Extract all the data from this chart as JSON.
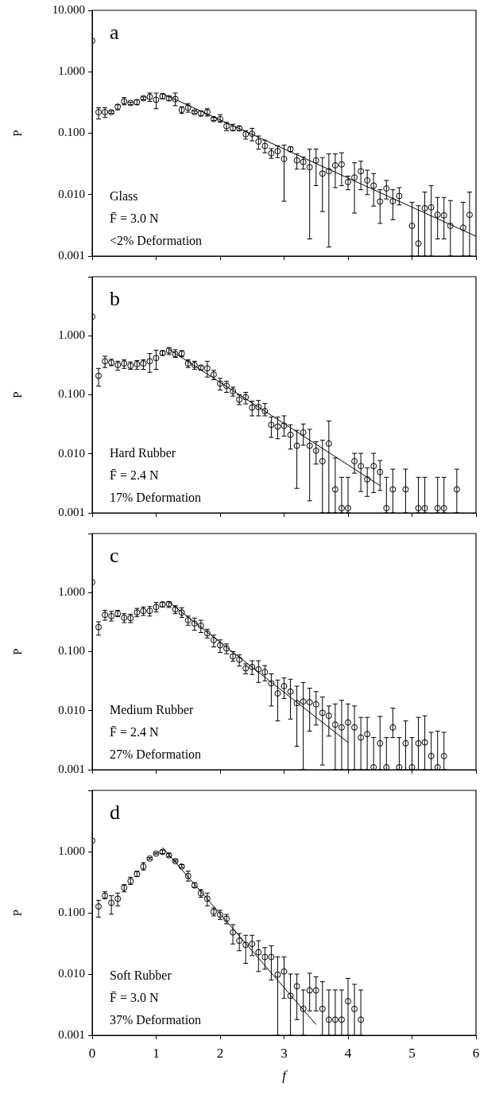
{
  "chart_data": [
    {
      "type": "scatter",
      "title": "a",
      "ylabel": "P",
      "annotations": [
        "Glass",
        "F̄ = 3.0 N",
        "<2% Deformation"
      ],
      "marker": "circle",
      "grid": false,
      "log": "y",
      "tick_labels": "y",
      "xlim": [
        0,
        6
      ],
      "xticks": [
        0,
        1,
        2,
        3,
        4,
        5,
        6
      ],
      "ylim": [
        0.001,
        10
      ],
      "yticks": [
        {
          "value": 0.001,
          "label": "0.001"
        },
        {
          "value": 0.01,
          "label": "0.010"
        },
        {
          "value": 0.1,
          "label": "0.100"
        },
        {
          "value": 1,
          "label": "1.000"
        },
        {
          "value": 10,
          "label": "10.000"
        }
      ],
      "series": [
        {
          "type": "scatter",
          "color": "#000000",
          "x": [
            0,
            0.1,
            0.2,
            0.3,
            0.4,
            0.5,
            0.6,
            0.7,
            0.8,
            0.9,
            1.0,
            1.1,
            1.2,
            1.3,
            1.4,
            1.5,
            1.6,
            1.7,
            1.8,
            1.9,
            2.0,
            2.1,
            2.2,
            2.3,
            2.4,
            2.5,
            2.6,
            2.7,
            2.8,
            2.9,
            3.0,
            3.1,
            3.2,
            3.3,
            3.4,
            3.5,
            3.6,
            3.7,
            3.8,
            3.9,
            4.0,
            4.1,
            4.2,
            4.3,
            4.4,
            4.5,
            4.6,
            4.7,
            4.8,
            5.0,
            5.1,
            5.2,
            5.3,
            5.4,
            5.5,
            5.6,
            5.8,
            5.9
          ],
          "values": [
            3.2,
            0.22,
            0.22,
            0.22,
            0.27,
            0.33,
            0.31,
            0.32,
            0.37,
            0.39,
            0.35,
            0.4,
            0.37,
            0.36,
            0.24,
            0.26,
            0.22,
            0.21,
            0.22,
            0.17,
            0.17,
            0.13,
            0.12,
            0.12,
            0.096,
            0.098,
            0.073,
            0.062,
            0.047,
            0.051,
            0.038,
            0.055,
            0.036,
            0.034,
            0.028,
            0.036,
            0.022,
            0.024,
            0.03,
            0.031,
            0.016,
            0.019,
            0.024,
            0.017,
            0.014,
            0.0077,
            0.0126,
            0.0078,
            0.0095,
            0.0031,
            0.0016,
            0.006,
            0.0062,
            0.0047,
            0.0046,
            0.0031,
            0.0029,
            0.0047
          ],
          "errors": [
            null,
            [
              0.17,
              0.26
            ],
            [
              0.18,
              0.26
            ],
            [
              0.21,
              0.23
            ],
            [
              0.24,
              0.29
            ],
            [
              0.29,
              0.38
            ],
            [
              0.29,
              0.32
            ],
            [
              0.29,
              0.35
            ],
            [
              0.35,
              0.39
            ],
            [
              0.33,
              0.45
            ],
            [
              0.25,
              0.45
            ],
            [
              0.36,
              0.44
            ],
            [
              0.34,
              0.4
            ],
            [
              0.28,
              0.45
            ],
            [
              0.21,
              0.27
            ],
            [
              0.22,
              0.3
            ],
            [
              0.21,
              0.23
            ],
            [
              0.19,
              0.23
            ],
            [
              0.19,
              0.25
            ],
            [
              0.16,
              0.18
            ],
            [
              0.15,
              0.2
            ],
            [
              0.11,
              0.15
            ],
            [
              0.11,
              0.14
            ],
            [
              0.11,
              0.13
            ],
            [
              0.08,
              0.11
            ],
            [
              0.075,
              0.12
            ],
            [
              0.055,
              0.09
            ],
            [
              0.048,
              0.077
            ],
            [
              0.039,
              0.056
            ],
            [
              0.04,
              0.062
            ],
            [
              0.0078,
              0.064
            ],
            [
              0.05,
              0.06
            ],
            [
              0.026,
              0.046
            ],
            [
              0.026,
              0.041
            ],
            [
              0.0019,
              0.055
            ],
            [
              0.014,
              0.055
            ],
            [
              0.0053,
              0.04
            ],
            [
              0.0014,
              0.046
            ],
            [
              0.013,
              0.046
            ],
            [
              0.014,
              0.048
            ],
            [
              0.012,
              0.02
            ],
            [
              0.005,
              0.033
            ],
            [
              0.012,
              0.035
            ],
            [
              0.01,
              0.025
            ],
            [
              0.0065,
              0.022
            ],
            [
              0.0034,
              0.012
            ],
            [
              0.0085,
              0.017
            ],
            [
              0.0039,
              0.012
            ],
            [
              0.0068,
              0.013
            ],
            [
              0.001,
              0.0075
            ],
            [
              0.001,
              0.0066
            ],
            [
              0.001,
              0.011
            ],
            [
              0.001,
              0.014
            ],
            [
              0.0019,
              0.009
            ],
            [
              0.0019,
              0.009
            ],
            [
              0.001,
              0.008
            ],
            [
              0.001,
              0.0075
            ],
            [
              0.001,
              0.011
            ]
          ]
        },
        {
          "type": "line",
          "marker": "none",
          "color": "#000000",
          "x": [
            1.1,
            6
          ],
          "values": [
            0.44,
            0.0021
          ]
        }
      ]
    },
    {
      "type": "scatter",
      "title": "b",
      "ylabel": "P",
      "annotations": [
        "Hard Rubber",
        "F̄ = 2.4 N",
        "17% Deformation"
      ],
      "marker": "circle",
      "grid": false,
      "log": "y",
      "tick_labels": "y",
      "xlim": [
        0,
        6
      ],
      "xticks": [
        0,
        1,
        2,
        3,
        4,
        5,
        6
      ],
      "ylim": [
        0.001,
        10
      ],
      "yticks": [
        {
          "value": 0.001,
          "label": "0.001"
        },
        {
          "value": 0.01,
          "label": "0.010"
        },
        {
          "value": 0.1,
          "label": "0.100"
        },
        {
          "value": 1,
          "label": "1.000"
        },
        {
          "value": 10,
          "label": null
        }
      ],
      "series": [
        {
          "type": "scatter",
          "color": "#000000",
          "x": [
            0,
            0.1,
            0.2,
            0.3,
            0.4,
            0.5,
            0.6,
            0.7,
            0.8,
            0.9,
            1.0,
            1.1,
            1.2,
            1.3,
            1.4,
            1.5,
            1.6,
            1.7,
            1.8,
            1.9,
            2.0,
            2.1,
            2.2,
            2.3,
            2.4,
            2.5,
            2.6,
            2.7,
            2.8,
            2.9,
            3.0,
            3.1,
            3.2,
            3.3,
            3.4,
            3.5,
            3.6,
            3.7,
            3.8,
            3.9,
            4.0,
            4.1,
            4.2,
            4.3,
            4.4,
            4.5,
            4.6,
            4.7,
            4.9,
            5.1,
            5.2,
            5.4,
            5.5,
            5.7
          ],
          "values": [
            2.1,
            0.21,
            0.37,
            0.35,
            0.32,
            0.34,
            0.31,
            0.33,
            0.34,
            0.37,
            0.42,
            0.51,
            0.56,
            0.49,
            0.5,
            0.34,
            0.32,
            0.29,
            0.28,
            0.22,
            0.155,
            0.142,
            0.115,
            0.083,
            0.091,
            0.061,
            0.062,
            0.053,
            0.031,
            0.029,
            0.03,
            0.021,
            0.0137,
            0.023,
            0.0137,
            0.0113,
            0.0075,
            0.0149,
            0.0025,
            0.0012,
            0.0012,
            0.0075,
            0.0062,
            0.0037,
            0.0062,
            0.0049,
            0.0012,
            0.0025,
            0.0025,
            0.0012,
            0.0012,
            0.0012,
            0.0012,
            0.0025
          ],
          "errors": [
            null,
            [
              0.14,
              0.28
            ],
            [
              0.29,
              0.45
            ],
            [
              0.31,
              0.4
            ],
            [
              0.26,
              0.37
            ],
            [
              0.28,
              0.39
            ],
            [
              0.27,
              0.36
            ],
            [
              0.27,
              0.38
            ],
            [
              0.27,
              0.39
            ],
            [
              0.24,
              0.5
            ],
            [
              0.27,
              0.57
            ],
            [
              0.47,
              0.55
            ],
            [
              0.48,
              0.63
            ],
            [
              0.43,
              0.58
            ],
            [
              0.44,
              0.56
            ],
            [
              0.29,
              0.39
            ],
            [
              0.27,
              0.37
            ],
            [
              0.26,
              0.31
            ],
            [
              0.2,
              0.37
            ],
            [
              0.18,
              0.26
            ],
            [
              0.12,
              0.19
            ],
            [
              0.11,
              0.17
            ],
            [
              0.095,
              0.135
            ],
            [
              0.068,
              0.1
            ],
            [
              0.07,
              0.11
            ],
            [
              0.044,
              0.078
            ],
            [
              0.044,
              0.08
            ],
            [
              0.044,
              0.071
            ],
            [
              0.019,
              0.042
            ],
            [
              0.018,
              0.042
            ],
            [
              0.02,
              0.044
            ],
            [
              0.012,
              0.031
            ],
            [
              0.0026,
              0.025
            ],
            [
              0.014,
              0.032
            ],
            [
              0.0016,
              0.026
            ],
            [
              0.0067,
              0.016
            ],
            [
              0.001,
              0.017
            ],
            [
              0.001,
              0.036
            ],
            [
              0.001,
              0.0085
            ],
            [
              0.001,
              0.004
            ],
            [
              0.001,
              0.004
            ],
            [
              0.0047,
              0.0102
            ],
            [
              0.0023,
              0.0102
            ],
            [
              0.0019,
              0.0058
            ],
            [
              0.0022,
              0.0102
            ],
            [
              0.0024,
              0.0077
            ],
            [
              0.001,
              0.004
            ],
            [
              0.001,
              0.0055
            ],
            [
              0.001,
              0.0055
            ],
            [
              0.001,
              0.004
            ],
            [
              0.001,
              0.004
            ],
            [
              0.001,
              0.004
            ],
            [
              0.001,
              0.004
            ],
            [
              0.001,
              0.0055
            ]
          ]
        },
        {
          "type": "line",
          "marker": "none",
          "color": "#000000",
          "x": [
            1.2,
            4.5
          ],
          "values": [
            0.59,
            0.0029
          ]
        }
      ]
    },
    {
      "type": "scatter",
      "title": "c",
      "ylabel": "P",
      "annotations": [
        "Medium Rubber",
        "F̄ = 2.4 N",
        "27% Deformation"
      ],
      "marker": "circle",
      "grid": false,
      "log": "y",
      "tick_labels": "y",
      "xlim": [
        0,
        6
      ],
      "xticks": [
        0,
        1,
        2,
        3,
        4,
        5,
        6
      ],
      "ylim": [
        0.001,
        10
      ],
      "yticks": [
        {
          "value": 0.001,
          "label": "0.001"
        },
        {
          "value": 0.01,
          "label": "0.010"
        },
        {
          "value": 0.1,
          "label": "0.100"
        },
        {
          "value": 1,
          "label": "1.000"
        },
        {
          "value": 10,
          "label": null
        }
      ],
      "series": [
        {
          "type": "scatter",
          "color": "#000000",
          "x": [
            0,
            0.1,
            0.2,
            0.3,
            0.4,
            0.5,
            0.6,
            0.7,
            0.8,
            0.9,
            1.0,
            1.1,
            1.2,
            1.3,
            1.4,
            1.5,
            1.6,
            1.7,
            1.8,
            1.9,
            2.0,
            2.1,
            2.2,
            2.3,
            2.4,
            2.5,
            2.6,
            2.7,
            2.8,
            2.9,
            3.0,
            3.1,
            3.2,
            3.3,
            3.4,
            3.5,
            3.6,
            3.7,
            3.8,
            3.9,
            4.0,
            4.1,
            4.2,
            4.3,
            4.4,
            4.5,
            4.6,
            4.7,
            4.8,
            4.9,
            5.0,
            5.1,
            5.2,
            5.3,
            5.4,
            5.5
          ],
          "values": [
            1.5,
            0.26,
            0.42,
            0.4,
            0.44,
            0.375,
            0.37,
            0.46,
            0.49,
            0.49,
            0.57,
            0.63,
            0.64,
            0.52,
            0.46,
            0.34,
            0.3,
            0.275,
            0.204,
            0.157,
            0.128,
            0.113,
            0.083,
            0.073,
            0.052,
            0.055,
            0.05,
            0.045,
            0.029,
            0.0196,
            0.026,
            0.021,
            0.0134,
            0.0143,
            0.0139,
            0.0128,
            0.0092,
            0.0082,
            0.0058,
            0.0052,
            0.0063,
            0.0052,
            0.0035,
            0.004,
            0.0011,
            0.0028,
            0.0011,
            0.0052,
            0.0011,
            0.0028,
            0.0011,
            0.0028,
            0.0029,
            0.0017,
            0.0011,
            0.0017
          ],
          "errors": [
            null,
            [
              0.19,
              0.32
            ],
            [
              0.34,
              0.5
            ],
            [
              0.33,
              0.48
            ],
            [
              0.39,
              0.5
            ],
            [
              0.31,
              0.44
            ],
            [
              0.31,
              0.43
            ],
            [
              0.39,
              0.54
            ],
            [
              0.41,
              0.57
            ],
            [
              0.4,
              0.58
            ],
            [
              0.47,
              0.68
            ],
            [
              0.57,
              0.69
            ],
            [
              0.56,
              0.7
            ],
            [
              0.44,
              0.6
            ],
            [
              0.38,
              0.55
            ],
            [
              0.28,
              0.4
            ],
            [
              0.23,
              0.37
            ],
            [
              0.21,
              0.34
            ],
            [
              0.17,
              0.24
            ],
            [
              0.12,
              0.19
            ],
            [
              0.097,
              0.158
            ],
            [
              0.092,
              0.135
            ],
            [
              0.069,
              0.1
            ],
            [
              0.057,
              0.088
            ],
            [
              0.042,
              0.062
            ],
            [
              0.041,
              0.07
            ],
            [
              0.03,
              0.07
            ],
            [
              0.032,
              0.058
            ],
            [
              0.012,
              0.042
            ],
            [
              0.0067,
              0.033
            ],
            [
              0.016,
              0.036
            ],
            [
              0.0072,
              0.034
            ],
            [
              0.0025,
              0.026
            ],
            [
              0.001,
              0.03
            ],
            [
              0.0045,
              0.024
            ],
            [
              0.0057,
              0.021
            ],
            [
              0.0012,
              0.017
            ],
            [
              0.0037,
              0.012
            ],
            [
              0.001,
              0.013
            ],
            [
              0.001,
              0.015
            ],
            [
              0.001,
              0.013
            ],
            [
              0.001,
              0.012
            ],
            [
              0.001,
              0.0077
            ],
            [
              0.001,
              0.0077
            ],
            [
              0.001,
              0.0035
            ],
            [
              0.001,
              0.008
            ],
            [
              0.001,
              0.0035
            ],
            [
              0.0035,
              0.011
            ],
            [
              0.001,
              0.0035
            ],
            [
              0.001,
              0.0067
            ],
            [
              0.001,
              0.0035
            ],
            [
              0.001,
              0.0077
            ],
            [
              0.001,
              0.0082
            ],
            [
              0.001,
              0.0043
            ],
            [
              0.001,
              0.0045
            ],
            [
              0.001,
              0.0043
            ]
          ]
        },
        {
          "type": "line",
          "marker": "none",
          "color": "#000000",
          "x": [
            1.2,
            4.0
          ],
          "values": [
            0.69,
            0.0029
          ]
        }
      ]
    },
    {
      "type": "scatter",
      "title": "d",
      "xlabel": "f",
      "ylabel": "P",
      "annotations": [
        "Soft Rubber",
        "F̄ = 3.0 N",
        "37% Deformation"
      ],
      "marker": "circle",
      "grid": false,
      "log": "y",
      "xlim": [
        0,
        6
      ],
      "xticks": [
        0,
        1,
        2,
        3,
        4,
        5,
        6
      ],
      "ylim": [
        0.001,
        10
      ],
      "yticks": [
        {
          "value": 0.001,
          "label": "0.001"
        },
        {
          "value": 0.01,
          "label": "0.010"
        },
        {
          "value": 0.1,
          "label": "0.100"
        },
        {
          "value": 1,
          "label": "1.000"
        },
        {
          "value": 10,
          "label": null
        }
      ],
      "series": [
        {
          "type": "scatter",
          "color": "#000000",
          "x": [
            0,
            0.1,
            0.2,
            0.3,
            0.4,
            0.5,
            0.6,
            0.7,
            0.8,
            0.9,
            1.0,
            1.1,
            1.2,
            1.3,
            1.4,
            1.5,
            1.6,
            1.7,
            1.8,
            1.9,
            2.0,
            2.1,
            2.2,
            2.3,
            2.4,
            2.5,
            2.6,
            2.7,
            2.8,
            2.9,
            3.0,
            3.1,
            3.2,
            3.3,
            3.4,
            3.5,
            3.6,
            3.7,
            3.8,
            3.9,
            4.0,
            4.1,
            4.2
          ],
          "values": [
            1.5,
            0.127,
            0.19,
            0.146,
            0.17,
            0.256,
            0.33,
            0.43,
            0.57,
            0.77,
            0.93,
            0.99,
            0.87,
            0.7,
            0.57,
            0.4,
            0.28,
            0.209,
            0.17,
            0.104,
            0.093,
            0.08,
            0.048,
            0.035,
            0.03,
            0.031,
            0.0227,
            0.019,
            0.019,
            0.0098,
            0.011,
            0.0044,
            0.0063,
            0.0027,
            0.0054,
            0.0054,
            0.0027,
            0.0018,
            0.0018,
            0.0018,
            0.0036,
            0.0027,
            0.0018
          ],
          "errors": [
            null,
            [
              0.085,
              0.16
            ],
            [
              0.17,
              0.22
            ],
            [
              0.095,
              0.19
            ],
            [
              0.13,
              0.21
            ],
            [
              0.22,
              0.29
            ],
            [
              0.29,
              0.38
            ],
            [
              0.39,
              0.48
            ],
            [
              0.5,
              0.66
            ],
            [
              0.75,
              0.8
            ],
            [
              0.91,
              0.96
            ],
            [
              0.93,
              1.06
            ],
            [
              0.83,
              0.92
            ],
            [
              0.68,
              0.73
            ],
            [
              0.55,
              0.61
            ],
            [
              0.33,
              0.48
            ],
            [
              0.26,
              0.31
            ],
            [
              0.18,
              0.24
            ],
            [
              0.13,
              0.21
            ],
            [
              0.089,
              0.12
            ],
            [
              0.078,
              0.11
            ],
            [
              0.066,
              0.094
            ],
            [
              0.031,
              0.064
            ],
            [
              0.024,
              0.046
            ],
            [
              0.015,
              0.043
            ],
            [
              0.02,
              0.043
            ],
            [
              0.011,
              0.035
            ],
            [
              0.012,
              0.027
            ],
            [
              0.008,
              0.029
            ],
            [
              0.001,
              0.019
            ],
            [
              0.004,
              0.019
            ],
            [
              0.001,
              0.01
            ],
            [
              0.0018,
              0.01
            ],
            [
              0.001,
              0.0055
            ],
            [
              0.0025,
              0.0103
            ],
            [
              0.0025,
              0.009
            ],
            [
              0.001,
              0.0075
            ],
            [
              0.001,
              0.0055
            ],
            [
              0.001,
              0.0055
            ],
            [
              0.001,
              0.0055
            ],
            [
              0.001,
              0.0085
            ],
            [
              0.001,
              0.0068
            ],
            [
              0.001,
              0.0055
            ]
          ]
        },
        {
          "type": "line",
          "marker": "none",
          "color": "#000000",
          "x": [
            1.1,
            3.5
          ],
          "values": [
            1.17,
            0.0015
          ]
        }
      ]
    }
  ]
}
